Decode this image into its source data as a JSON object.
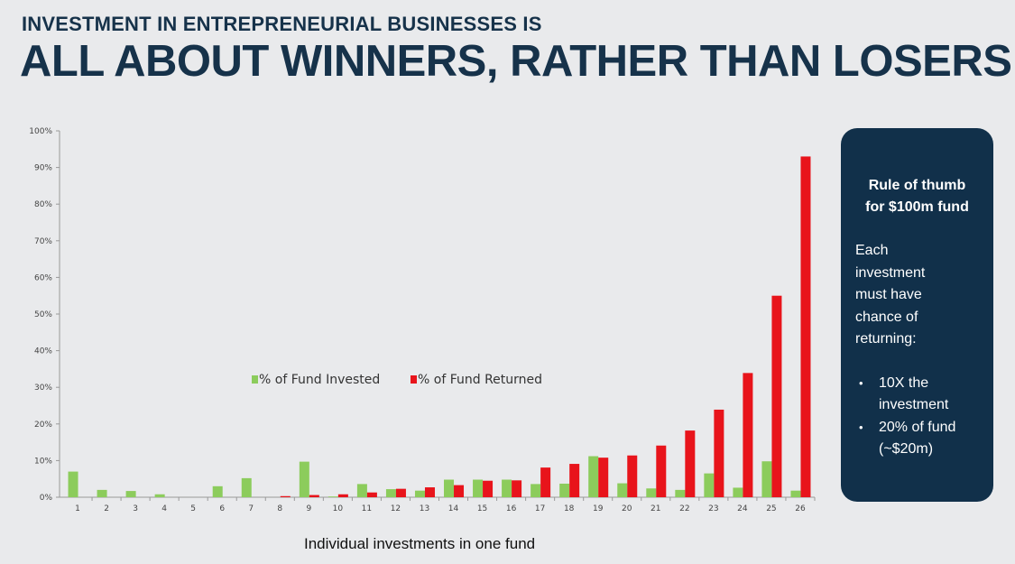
{
  "header": {
    "subtitle": "INVESTMENT IN ENTREPRENEURIAL BUSINESSES IS",
    "title": "ALL ABOUT WINNERS, RATHER THAN LOSERS"
  },
  "panel": {
    "heading_line1": "Rule of thumb",
    "heading_line2": "for $100m fund",
    "body_lines": [
      "Each",
      "investment",
      "must have",
      "chance of",
      "returning:"
    ],
    "bullets": [
      [
        "10X the",
        "investment"
      ],
      [
        "20% of fund",
        "(~$20m)"
      ]
    ]
  },
  "colors": {
    "invested": "#8ccc5c",
    "returned": "#e8141b",
    "panel_bg": "#11304a",
    "title": "#16324a"
  },
  "chart_data": {
    "type": "bar",
    "xlabel": "Individual investments in one fund",
    "ylabel": "",
    "ylim": [
      0,
      100
    ],
    "ytick_labels": [
      "0%",
      "10%",
      "20%",
      "30%",
      "40%",
      "50%",
      "60%",
      "70%",
      "80%",
      "90%",
      "100%"
    ],
    "grid": false,
    "legend_placement": "center-left",
    "categories": [
      "1",
      "2",
      "3",
      "4",
      "5",
      "6",
      "7",
      "8",
      "9",
      "10",
      "11",
      "12",
      "13",
      "14",
      "15",
      "16",
      "17",
      "18",
      "19",
      "20",
      "21",
      "22",
      "23",
      "24",
      "25",
      "26"
    ],
    "series": [
      {
        "name": "% of Fund Invested",
        "color": "#8ccc5c",
        "values": [
          7,
          2,
          1.7,
          0.8,
          0,
          3,
          5.2,
          0,
          9.7,
          0.2,
          3.6,
          2.2,
          1.8,
          4.8,
          4.8,
          4.8,
          3.6,
          3.7,
          11.2,
          3.8,
          2.4,
          2,
          6.5,
          2.6,
          9.8,
          1.8
        ]
      },
      {
        "name": "% of Fund Returned",
        "color": "#e8141b",
        "values": [
          0,
          0,
          0,
          0,
          0,
          0,
          0,
          0.3,
          0.6,
          0.8,
          1.3,
          2.3,
          2.7,
          3.3,
          4.5,
          4.6,
          8.1,
          9.1,
          10.8,
          11.4,
          14.1,
          18.2,
          23.9,
          33.9,
          55,
          93
        ]
      }
    ]
  }
}
